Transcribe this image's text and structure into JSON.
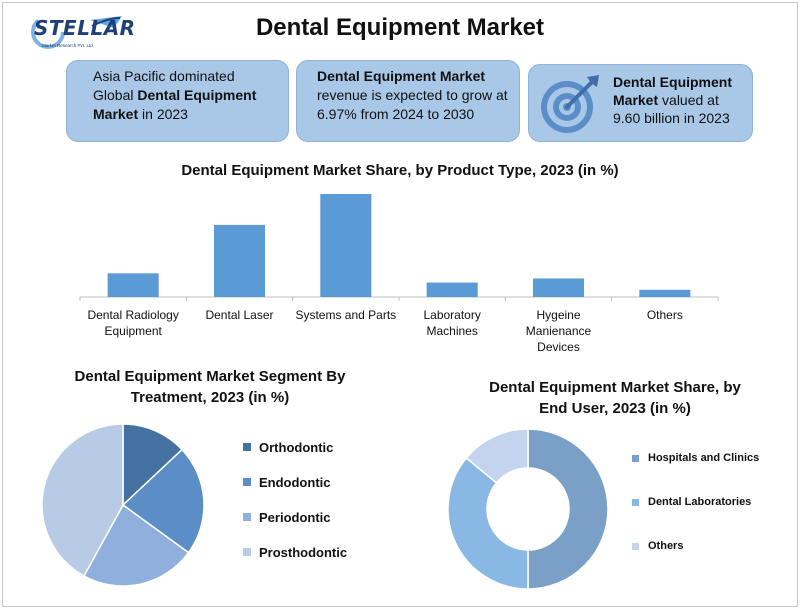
{
  "logo": {
    "name": "STELLAR",
    "tagline": "Market Research Pvt. Ltd."
  },
  "title": "Dental Equipment Market",
  "info": {
    "box1": {
      "pre": "Asia Pacific dominated Global ",
      "bold": "Dental Equipment Market",
      "post": " in 2023"
    },
    "box2": {
      "bold": "Dental Equipment Market",
      "post": " revenue is expected to grow at 6.97% from 2024 to 2030"
    },
    "box3": {
      "bold": "Dental Equipment Market",
      "post": " valued at 9.60 billion in 2023",
      "icon": "target-icon"
    }
  },
  "colors": {
    "bar": "#5b9bd5",
    "box_bg": "#a9c8e8",
    "pie": [
      "#44719f",
      "#5b8ec7",
      "#8fb0dc",
      "#b7cbe7"
    ],
    "donut": [
      "#7ba0c8",
      "#8ab8e4",
      "#c4d4ee"
    ]
  },
  "chart_data": [
    {
      "type": "bar",
      "title": "Dental Equipment Market Share, by Product Type, 2023 (in %)",
      "categories": [
        "Dental Radiology Equipment",
        "Dental Laser",
        "Systems and Parts",
        "Laboratory Machines",
        "Hygeine Manienance Devices",
        "Others"
      ],
      "category_lines": [
        [
          "Dental Radiology",
          "Equipment"
        ],
        [
          "Dental Laser"
        ],
        [
          "Systems and Parts"
        ],
        [
          "Laboratory",
          "Machines"
        ],
        [
          "Hygeine",
          "Manienance",
          "Devices"
        ],
        [
          "Others"
        ]
      ],
      "values": [
        23,
        70,
        100,
        14,
        18,
        7
      ],
      "ylim": [
        0,
        100
      ],
      "grid": false,
      "legend": "none"
    },
    {
      "type": "pie",
      "title": "Dental Equipment Market Segment By Treatment, 2023 (in %)",
      "title_lines": [
        "Dental Equipment Market Segment By",
        "Treatment, 2023 (in %)"
      ],
      "labels": [
        "Orthodontic",
        "Endodontic",
        "Periodontic",
        "Prosthodontic"
      ],
      "values": [
        13,
        22,
        23,
        42
      ],
      "legend": "right"
    },
    {
      "type": "pie",
      "subtype": "donut",
      "title": "Dental Equipment Market Share, by End User, 2023 (in %)",
      "title_lines": [
        "Dental Equipment Market Share, by",
        "End User, 2023 (in %)"
      ],
      "labels": [
        "Hospitals and Clinics",
        "Dental Laboratories",
        "Others"
      ],
      "values": [
        50,
        36,
        14
      ],
      "legend": "right"
    }
  ]
}
